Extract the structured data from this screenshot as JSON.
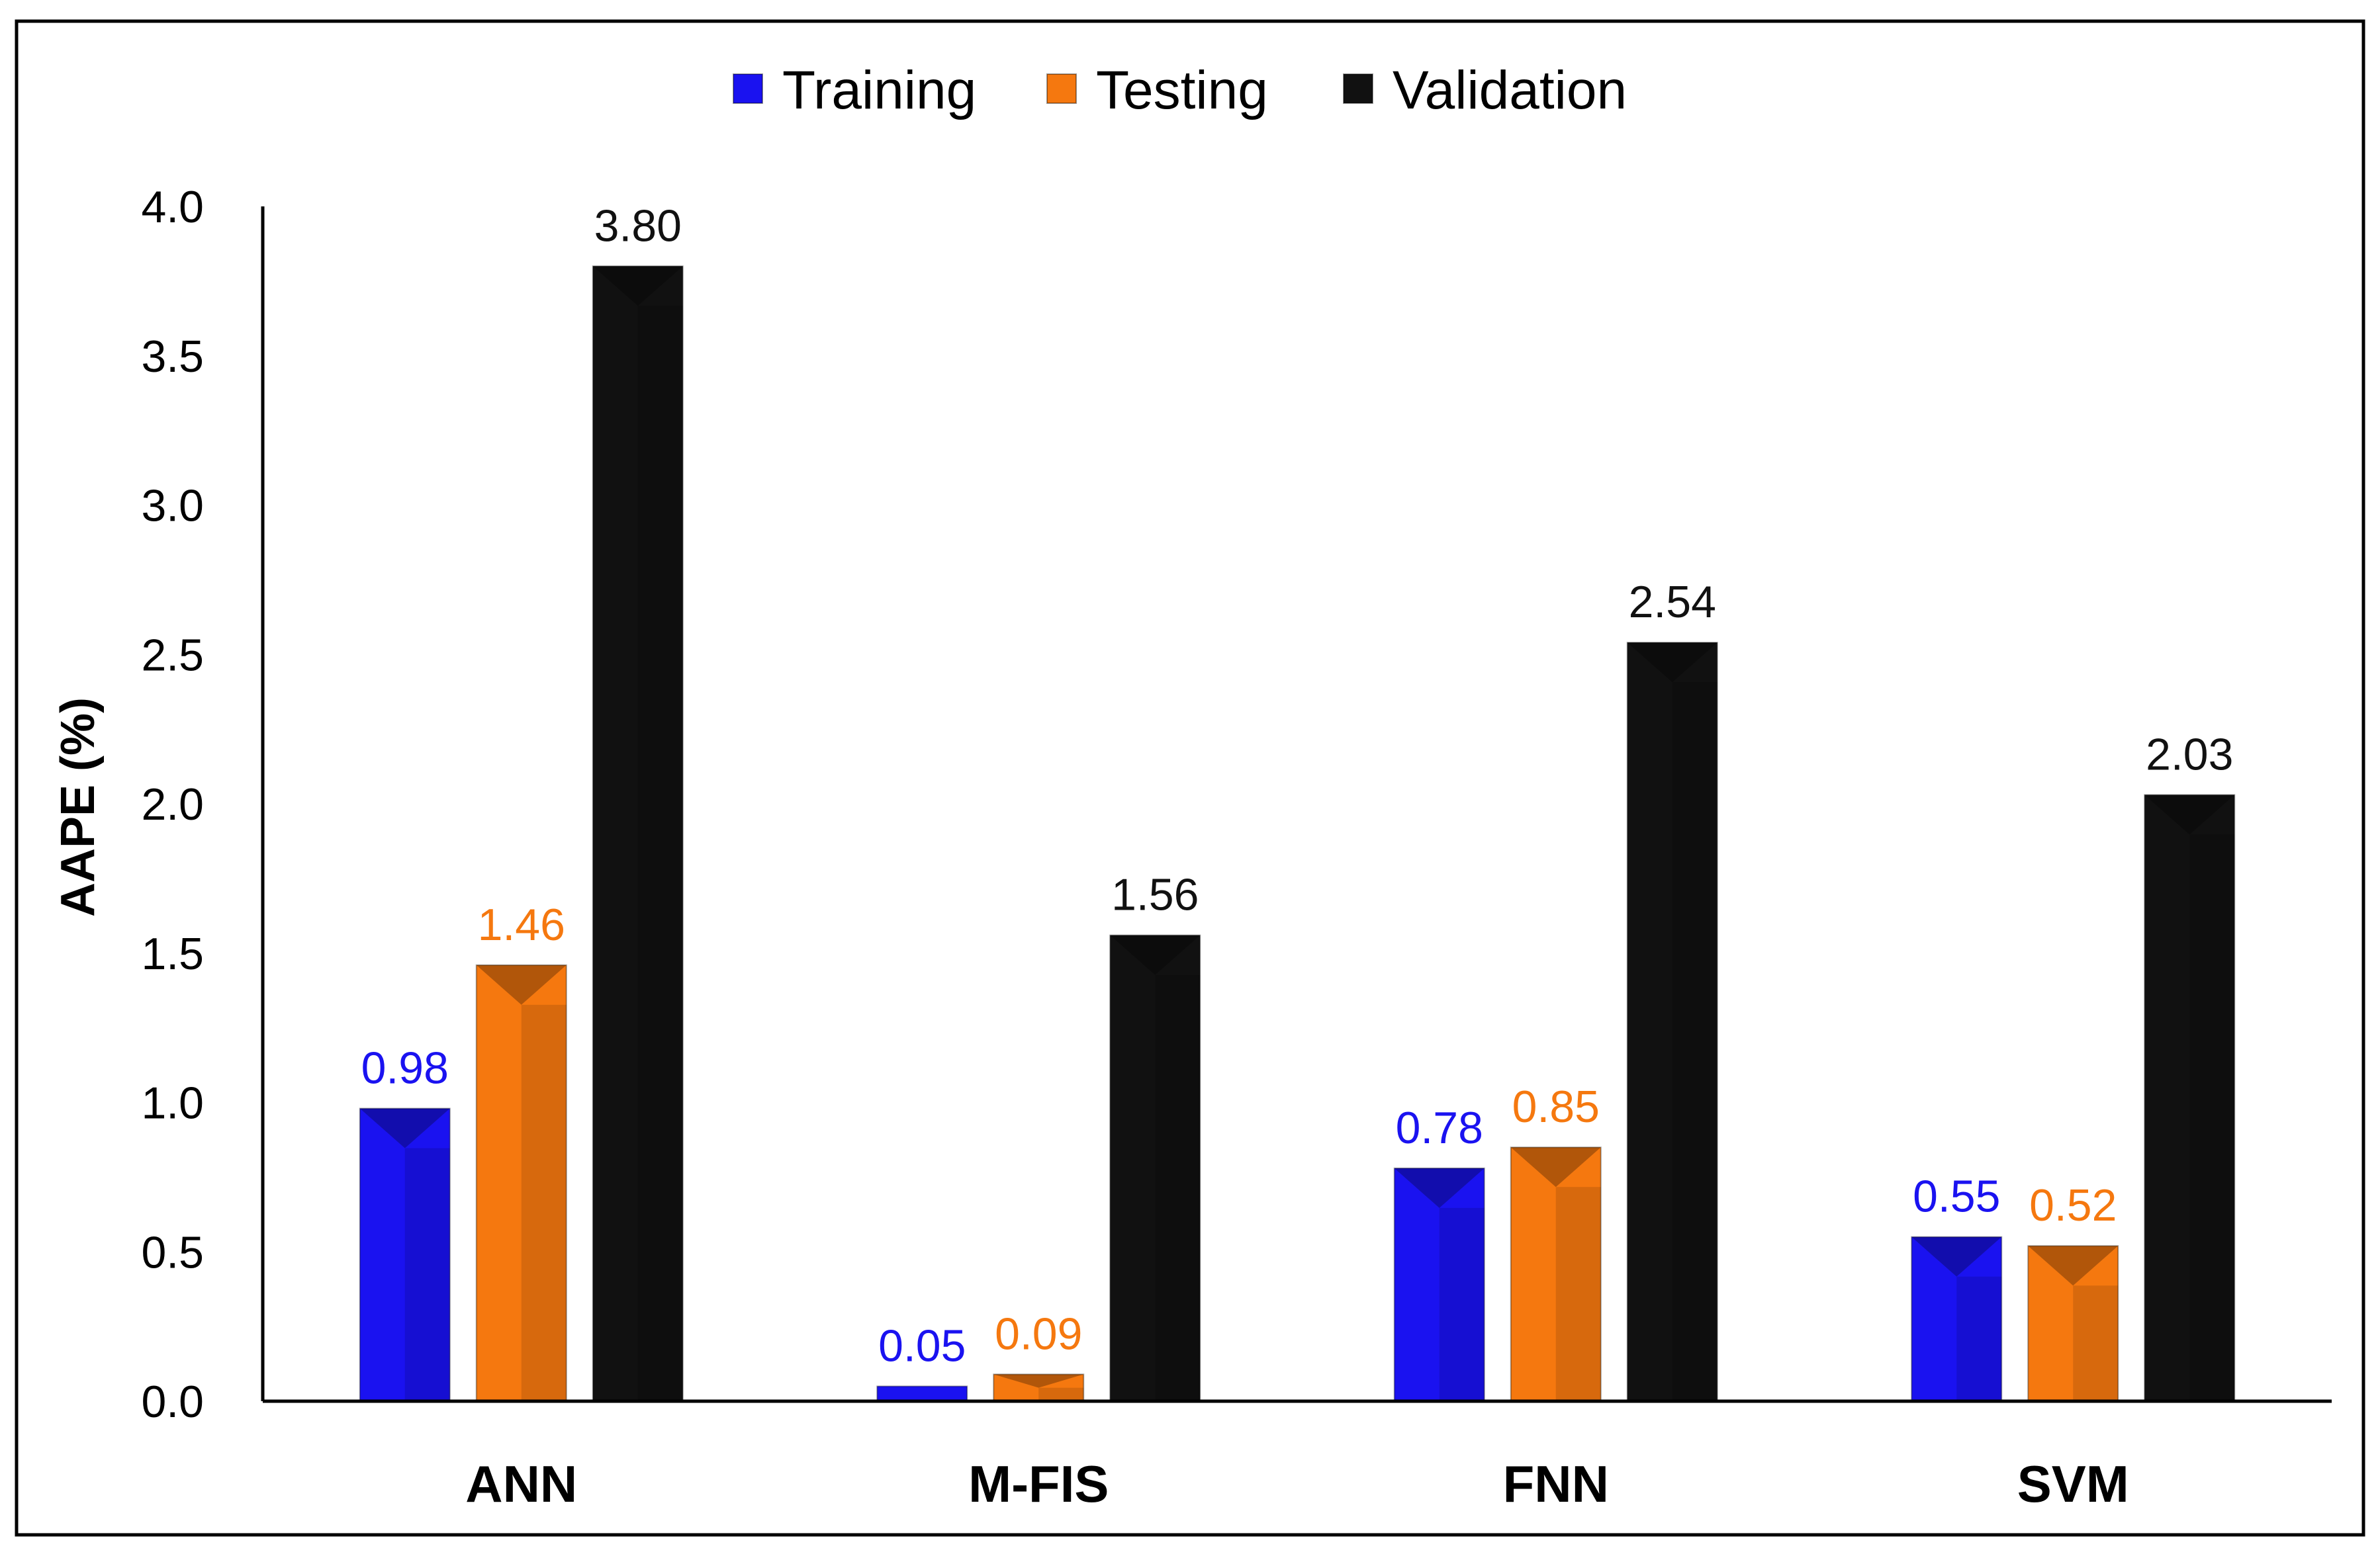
{
  "chart_data": {
    "type": "bar",
    "title": "",
    "xlabel": "",
    "ylabel": "AAPE (%)",
    "ylim": [
      0,
      4.0
    ],
    "yticks": [
      "0.0",
      "0.5",
      "1.0",
      "1.5",
      "2.0",
      "2.5",
      "3.0",
      "3.5",
      "4.0"
    ],
    "categories": [
      "ANN",
      "M-FIS",
      "FNN",
      "SVM"
    ],
    "legend_position": "top-center",
    "grid": false,
    "series": [
      {
        "name": "Training",
        "color": "#1a12f0",
        "values": [
          0.98,
          0.05,
          0.78,
          0.55
        ],
        "labels": [
          "0.98",
          "0.05",
          "0.78",
          "0.55"
        ]
      },
      {
        "name": "Testing",
        "color": "#f5780f",
        "values": [
          1.46,
          0.09,
          0.85,
          0.52
        ],
        "labels": [
          "1.46",
          "0.09",
          "0.85",
          "0.52"
        ]
      },
      {
        "name": "Validation",
        "color": "#111111",
        "values": [
          3.8,
          1.56,
          2.54,
          2.03
        ],
        "labels": [
          "3.80",
          "1.56",
          "2.54",
          "2.03"
        ]
      }
    ]
  }
}
